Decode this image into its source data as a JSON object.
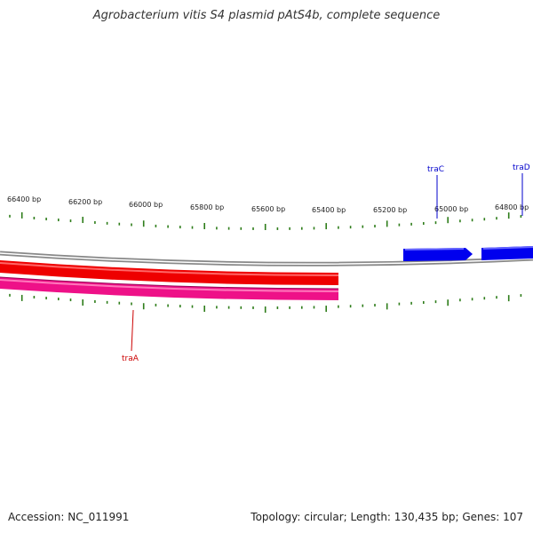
{
  "title": "Agrobacterium vitis S4 plasmid pAtS4b, complete sequence",
  "footer": {
    "accession": "Accession: NC_011991",
    "summary": "Topology: circular; Length: 130,435 bp; Genes: 107"
  },
  "map": {
    "ruler_labels": [
      "66400 bp",
      "66200 bp",
      "66000 bp",
      "65800 bp",
      "65600 bp",
      "65400 bp",
      "65200 bp",
      "65000 bp",
      "64800 bp"
    ],
    "genes": [
      {
        "name": "traC",
        "strand": "forward",
        "color": "#0000ee"
      },
      {
        "name": "traD",
        "strand": "forward",
        "color": "#0000ee"
      },
      {
        "name": "traA",
        "strand": "reverse",
        "color": "#cc0000"
      }
    ],
    "colors": {
      "backbone": "#888888",
      "tick": "#2e7d1a",
      "forward_gene": "#0000ee",
      "reverse_gene_outer": "#ee0000",
      "reverse_gene_inner": "#ee1188"
    }
  }
}
